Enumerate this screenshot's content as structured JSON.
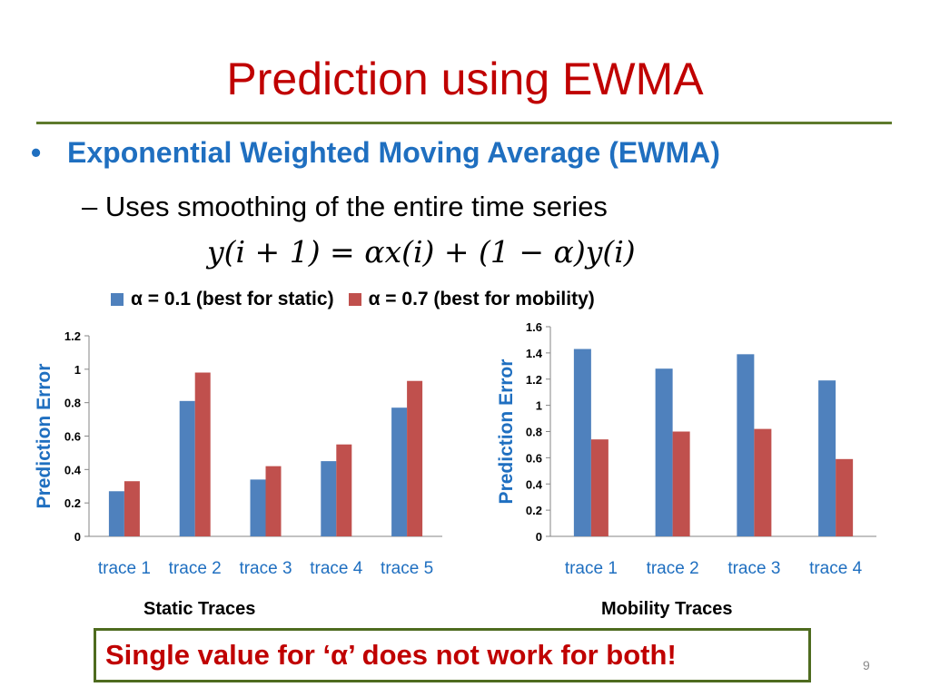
{
  "slide": {
    "title": "Prediction using EWMA",
    "bullet_symbol": "•",
    "bullet": "Exponential Weighted Moving Average (EWMA)",
    "subbullet": "– Uses smoothing of the entire time series",
    "formula": "y(i + 1) =  αx(i) + (1 − α)y(i)",
    "callout": "Single value for ‘α’ does not work for both!",
    "page_number": "9"
  },
  "legend": {
    "items": [
      {
        "label": "α = 0.1 (best for static)",
        "color": "#4f81bd"
      },
      {
        "label": "α = 0.7 (best for mobility)",
        "color": "#c0504d"
      }
    ]
  },
  "chart_data": [
    {
      "type": "bar",
      "title": "Static Traces",
      "ylabel": "Prediction Error",
      "xlabel": "",
      "categories": [
        "trace 1",
        "trace 2",
        "trace 3",
        "trace 4",
        "trace 5"
      ],
      "series": [
        {
          "name": "α = 0.1 (best for static)",
          "color": "#4f81bd",
          "values": [
            0.27,
            0.81,
            0.34,
            0.45,
            0.77
          ]
        },
        {
          "name": "α = 0.7 (best for mobility)",
          "color": "#c0504d",
          "values": [
            0.33,
            0.98,
            0.42,
            0.55,
            0.93
          ]
        }
      ],
      "ylim": [
        0,
        1.2
      ],
      "yticks": [
        "0",
        "0.2",
        "0.4",
        "0.6",
        "0.8",
        "1",
        "1.2"
      ],
      "grid": false,
      "legend_position": "top"
    },
    {
      "type": "bar",
      "title": "Mobility Traces",
      "ylabel": "Prediction Error",
      "xlabel": "",
      "categories": [
        "trace 1",
        "trace 2",
        "trace 3",
        "trace 4"
      ],
      "series": [
        {
          "name": "α = 0.1 (best for static)",
          "color": "#4f81bd",
          "values": [
            1.43,
            1.28,
            1.39,
            1.19
          ]
        },
        {
          "name": "α = 0.7 (best for mobility)",
          "color": "#c0504d",
          "values": [
            0.74,
            0.8,
            0.82,
            0.59
          ]
        }
      ],
      "ylim": [
        0,
        1.6
      ],
      "yticks": [
        "0",
        "0.2",
        "0.4",
        "0.6",
        "0.8",
        "1",
        "1.2",
        "1.4",
        "1.6"
      ],
      "grid": false,
      "legend_position": "top"
    }
  ]
}
